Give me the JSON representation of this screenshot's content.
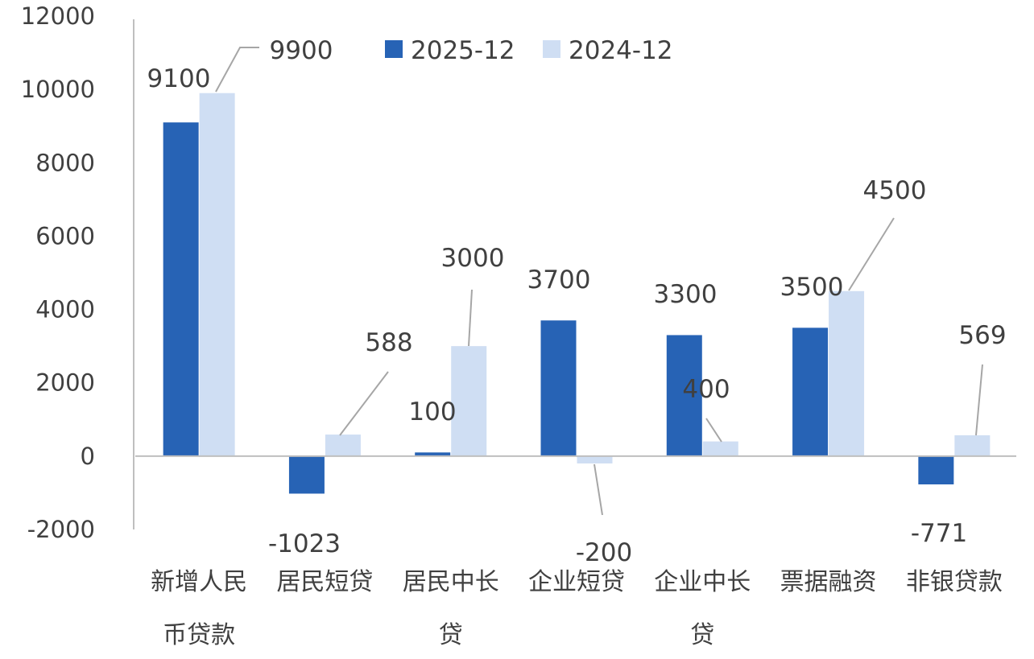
{
  "chart_data": {
    "type": "bar",
    "title": "",
    "xlabel": "",
    "ylabel": "",
    "ylim": [
      -2000,
      12000
    ],
    "yticks": [
      -2000,
      0,
      2000,
      4000,
      6000,
      8000,
      10000,
      12000
    ],
    "ytick_labels": [
      "-2000",
      "0",
      "2000",
      "4000",
      "6000",
      "8000",
      "10000",
      "12000"
    ],
    "grid": false,
    "legend_position": "top",
    "categories": [
      [
        "新增人民",
        "币贷款"
      ],
      [
        "居民短贷"
      ],
      [
        "居民中长",
        "贷"
      ],
      [
        "企业短贷"
      ],
      [
        "企业中长",
        "贷"
      ],
      [
        "票据融资"
      ],
      [
        "非银贷款"
      ]
    ],
    "series": [
      {
        "name": "2025-12",
        "color": "#2763b5",
        "values": [
          9100,
          -1023,
          100,
          3700,
          3300,
          3500,
          -771
        ],
        "labels": [
          "9100",
          "-1023",
          "100",
          "3700",
          "3300",
          "3500",
          "-771"
        ]
      },
      {
        "name": "2024-12",
        "color": "#cfdef3",
        "values": [
          9900,
          588,
          3000,
          -200,
          400,
          4500,
          569
        ],
        "labels": [
          "9900",
          "588",
          "3000",
          "-200",
          "400",
          "4500",
          "569"
        ]
      }
    ]
  }
}
